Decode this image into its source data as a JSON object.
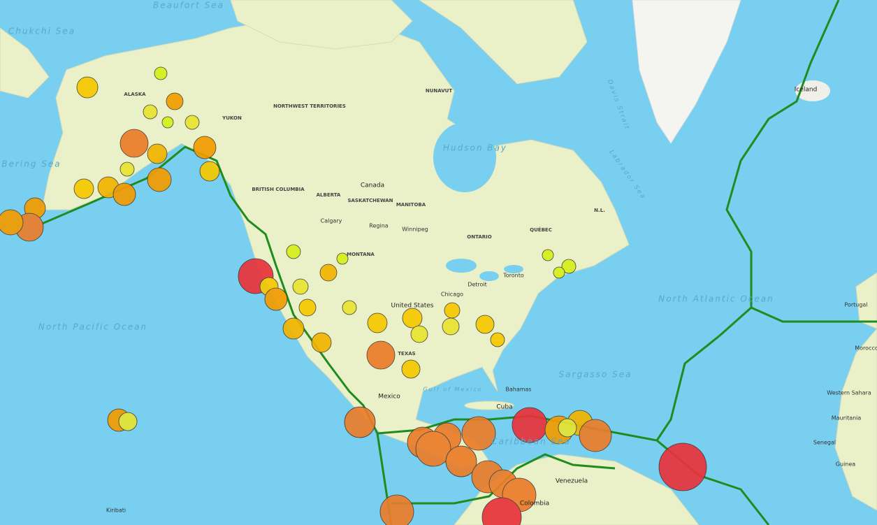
{
  "labels": [
    "Chukchi Sea",
    "Beaufort Sea",
    "Bering Sea",
    "North Pacific Ocean",
    "Canada",
    "United States",
    "Mexico",
    "Hudson Bay",
    "North Atlantic Ocean",
    "Sargasso Sea",
    "Caribbean Sea",
    "Venezuela",
    "Iceland",
    "ALASKA",
    "YUKON",
    "NORTHWEST TERRITORIES",
    "NUNAVUT",
    "BRITISH COLUMBIA",
    "ALBERTA",
    "SASKATCHEWAN",
    "MANITOBA",
    "ONTARIO",
    "QUÉBEC",
    "Calgary",
    "Regina",
    "Winnipeg",
    "Chicago",
    "Toronto",
    "Detroit",
    "Cuba",
    "Bahamas",
    "Mauritania",
    "Senegal",
    "Morocco",
    "Portugal",
    "Western Sahara",
    "Gulf of Mexico",
    "Davis Strait",
    "Labrador Sea",
    "TEXAS",
    "MONTANA",
    "Kiribati",
    "Colombia",
    "Guinea",
    "N.L."
  ]
}
